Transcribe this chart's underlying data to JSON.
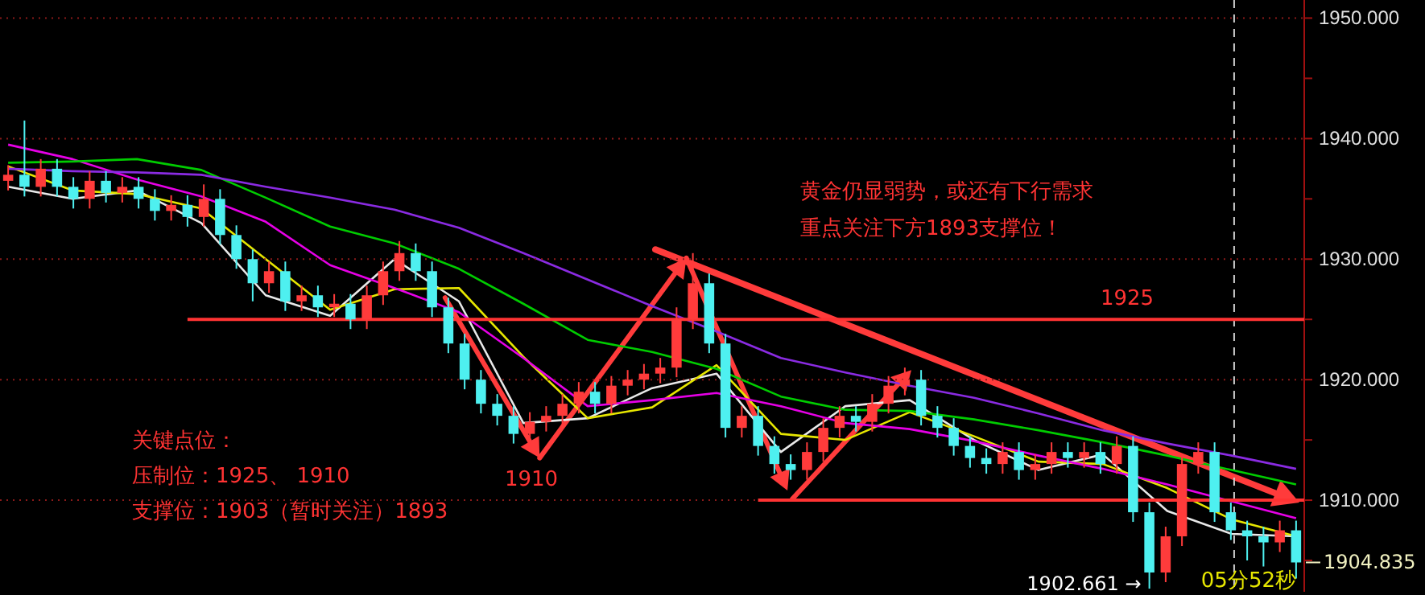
{
  "chart_data": [
    {
      "type": "candlestick",
      "categories": [
        null,
        null,
        null,
        null,
        null,
        null,
        null,
        null,
        null,
        null,
        null,
        null,
        null,
        null,
        null,
        null,
        null,
        null,
        null,
        null,
        null,
        null,
        null,
        null,
        null,
        null,
        null,
        null,
        null,
        null,
        null,
        null,
        null,
        null,
        null,
        null,
        null,
        null,
        null,
        null,
        null,
        null,
        null,
        null,
        null,
        null,
        null,
        null,
        null,
        null,
        null,
        null,
        null,
        null,
        null,
        null,
        null,
        null,
        null,
        null,
        null,
        null,
        null,
        null,
        null,
        null,
        null,
        null,
        null,
        null,
        null,
        null,
        null,
        null,
        null,
        null,
        null,
        null,
        null,
        null
      ],
      "ohlc": [
        [
          1936.5,
          1937.8,
          1935.7,
          1937
        ],
        [
          1937,
          1941.5,
          1935.2,
          1936
        ],
        [
          1936,
          1938.3,
          1935.2,
          1937.5
        ],
        [
          1937.5,
          1938.3,
          1935.2,
          1936
        ],
        [
          1936,
          1936.8,
          1934.2,
          1935
        ],
        [
          1935,
          1937.3,
          1934.2,
          1936.5
        ],
        [
          1936.5,
          1937.3,
          1934.7,
          1935.5
        ],
        [
          1935.5,
          1936.8,
          1934.7,
          1936
        ],
        [
          1936,
          1936.8,
          1934.2,
          1935
        ],
        [
          1935,
          1935.8,
          1933.2,
          1934
        ],
        [
          1934,
          1935.3,
          1933.2,
          1934.5
        ],
        [
          1934.5,
          1935.3,
          1932.7,
          1933.5
        ],
        [
          1933.5,
          1936.2,
          1932.7,
          1935
        ],
        [
          1935,
          1935.8,
          1931.2,
          1932
        ],
        [
          1932,
          1932.8,
          1929.2,
          1930
        ],
        [
          1930,
          1930.8,
          1926.5,
          1928
        ],
        [
          1928,
          1929.8,
          1927.2,
          1929
        ],
        [
          1929,
          1929.8,
          1925.7,
          1926.5
        ],
        [
          1926.5,
          1927.8,
          1925.7,
          1927
        ],
        [
          1927,
          1927.8,
          1925.2,
          1926
        ],
        [
          1926,
          1927.1,
          1925.2,
          1926.3
        ],
        [
          1926.3,
          1927.1,
          1924.2,
          1925
        ],
        [
          1925,
          1927.8,
          1924.2,
          1927
        ],
        [
          1927,
          1929.8,
          1926.2,
          1929
        ],
        [
          1929,
          1931.5,
          1928.2,
          1930.5
        ],
        [
          1930.5,
          1931.3,
          1928.2,
          1929
        ],
        [
          1929,
          1929.8,
          1925.2,
          1926
        ],
        [
          1926,
          1926.8,
          1922.2,
          1923
        ],
        [
          1923,
          1923.8,
          1919.2,
          1920
        ],
        [
          1920,
          1920.8,
          1917.2,
          1918
        ],
        [
          1918,
          1918.8,
          1916.2,
          1917
        ],
        [
          1917,
          1917.8,
          1914.7,
          1915.5
        ],
        [
          1915.5,
          1917.3,
          1914.7,
          1916.5
        ],
        [
          1916.5,
          1917.8,
          1915.7,
          1917
        ],
        [
          1917,
          1918.8,
          1916.2,
          1918
        ],
        [
          1918,
          1919.8,
          1917.2,
          1919
        ],
        [
          1919,
          1919.8,
          1917.2,
          1918
        ],
        [
          1918,
          1920.3,
          1917.2,
          1919.5
        ],
        [
          1919.5,
          1920.8,
          1918.7,
          1920
        ],
        [
          1920,
          1921.3,
          1919.2,
          1920.5
        ],
        [
          1920.5,
          1921.8,
          1919.7,
          1921
        ],
        [
          1921,
          1926,
          1920.2,
          1925
        ],
        [
          1925,
          1930.5,
          1924.2,
          1928
        ],
        [
          1928,
          1928.8,
          1922.2,
          1923
        ],
        [
          1923,
          1923.8,
          1915.2,
          1916
        ],
        [
          1916,
          1917.8,
          1915.2,
          1917
        ],
        [
          1917,
          1917.8,
          1913.7,
          1914.5
        ],
        [
          1914.5,
          1915.3,
          1912.2,
          1913
        ],
        [
          1913,
          1913.8,
          1911.7,
          1912.5
        ],
        [
          1912.5,
          1914.8,
          1911.7,
          1914
        ],
        [
          1914,
          1916.8,
          1913.2,
          1916
        ],
        [
          1916,
          1917.8,
          1915.2,
          1917
        ],
        [
          1917,
          1917.8,
          1915.7,
          1916.5
        ],
        [
          1916.5,
          1918.8,
          1915.7,
          1918
        ],
        [
          1918,
          1920.3,
          1917.2,
          1919.5
        ],
        [
          1919.5,
          1921,
          1918.7,
          1920
        ],
        [
          1920,
          1920.8,
          1916.2,
          1917
        ],
        [
          1917,
          1917.8,
          1915.2,
          1916
        ],
        [
          1916,
          1916.8,
          1913.7,
          1914.5
        ],
        [
          1914.5,
          1915.3,
          1912.7,
          1913.5
        ],
        [
          1913.5,
          1914.3,
          1912.2,
          1913
        ],
        [
          1913,
          1914.8,
          1912.2,
          1914
        ],
        [
          1914,
          1914.8,
          1911.7,
          1912.5
        ],
        [
          1912.5,
          1913.8,
          1911.7,
          1913
        ],
        [
          1913,
          1914.8,
          1912.2,
          1914
        ],
        [
          1914,
          1914.8,
          1912.7,
          1913.5
        ],
        [
          1913.5,
          1914.8,
          1912.7,
          1914
        ],
        [
          1914,
          1914.8,
          1912.2,
          1913
        ],
        [
          1913,
          1915.3,
          1912.2,
          1914.5
        ],
        [
          1914.5,
          1915.3,
          1908.2,
          1909
        ],
        [
          1909,
          1909.8,
          1902.661,
          1904
        ],
        [
          1904,
          1907.8,
          1903.2,
          1907
        ],
        [
          1907,
          1913.8,
          1906.2,
          1913
        ],
        [
          1913,
          1914.8,
          1912.2,
          1914
        ],
        [
          1914,
          1914.8,
          1908.2,
          1909
        ],
        [
          1909,
          1909.8,
          1906.7,
          1907.5
        ],
        [
          1907.5,
          1908.3,
          1905,
          1907
        ],
        [
          1907,
          1907.8,
          1904.5,
          1906.5
        ],
        [
          1906.5,
          1908.3,
          1905.7,
          1907.5
        ],
        [
          1907.5,
          1908.3,
          1903.5,
          1904.835
        ]
      ],
      "colors": [
        "#ff3b3b",
        "#4ef0f0",
        "#ff3b3b",
        "#4ef0f0",
        "#4ef0f0",
        "#ff3b3b",
        "#4ef0f0",
        "#ff3b3b",
        "#4ef0f0",
        "#4ef0f0",
        "#ff3b3b",
        "#4ef0f0",
        "#ff3b3b",
        "#4ef0f0",
        "#4ef0f0",
        "#4ef0f0",
        "#ff3b3b",
        "#4ef0f0",
        "#ff3b3b",
        "#4ef0f0",
        "#ff3b3b",
        "#4ef0f0",
        "#ff3b3b",
        "#ff3b3b",
        "#ff3b3b",
        "#4ef0f0",
        "#4ef0f0",
        "#4ef0f0",
        "#4ef0f0",
        "#4ef0f0",
        "#4ef0f0",
        "#4ef0f0",
        "#ff3b3b",
        "#ff3b3b",
        "#ff3b3b",
        "#ff3b3b",
        "#4ef0f0",
        "#ff3b3b",
        "#ff3b3b",
        "#ff3b3b",
        "#ff3b3b",
        "#ff3b3b",
        "#ff3b3b",
        "#4ef0f0",
        "#4ef0f0",
        "#ff3b3b",
        "#4ef0f0",
        "#4ef0f0",
        "#4ef0f0",
        "#ff3b3b",
        "#ff3b3b",
        "#ff3b3b",
        "#4ef0f0",
        "#ff3b3b",
        "#ff3b3b",
        "#ff3b3b",
        "#4ef0f0",
        "#4ef0f0",
        "#4ef0f0",
        "#4ef0f0",
        "#4ef0f0",
        "#ff3b3b",
        "#4ef0f0",
        "#ff3b3b",
        "#ff3b3b",
        "#4ef0f0",
        "#ff3b3b",
        "#4ef0f0",
        "#ff3b3b",
        "#4ef0f0",
        "#4ef0f0",
        "#ff3b3b",
        "#ff3b3b",
        "#ff3b3b",
        "#4ef0f0",
        "#4ef0f0",
        "#4ef0f0",
        "#4ef0f0",
        "#ff3b3b",
        "#4ef0f0"
      ],
      "ylim": [
        1902.4,
        1951.5
      ],
      "yticks": [
        {
          "value": 1905,
          "label": null
        },
        {
          "value": 1910,
          "label": "1910.000"
        },
        {
          "value": 1915,
          "label": null
        },
        {
          "value": 1920,
          "label": "1920.000"
        },
        {
          "value": 1925,
          "label": null
        },
        {
          "value": 1930,
          "label": "1930.000"
        },
        {
          "value": 1935,
          "label": null
        },
        {
          "value": 1940,
          "label": "1940.000"
        },
        {
          "value": 1945,
          "label": null
        },
        {
          "value": 1950,
          "label": "1950.000"
        }
      ],
      "tick_labels": "y",
      "grid": "y",
      "ref_lines": [
        {
          "axis": "y",
          "value": 1925,
          "label": "1925",
          "color": "#ff3333"
        },
        {
          "axis": "y",
          "value": 1910,
          "label": "1910",
          "color": "#ff3333"
        }
      ],
      "annotations": [
        "黄金仍显弱势，或还有下行需求",
        "重点关注下方1893支撑位！",
        "关键点位：",
        "压制位：1925、 1910",
        "支撑位：1903（暂时关注）1893",
        "1902.661 →",
        "1904.835",
        "05分52秒"
      ]
    },
    {
      "type": "line",
      "categories": [
        null,
        null,
        null,
        null,
        null,
        null,
        null,
        null,
        null,
        null,
        null,
        null,
        null,
        null,
        null,
        null,
        null,
        null,
        null,
        null,
        null
      ],
      "series": [
        {
          "color": "#e8e8e8",
          "values": [
            1936,
            1935,
            1935.7,
            1933,
            1927,
            1925.3,
            1930,
            1926.5,
            1916.4,
            1916.8,
            1919.3,
            1920.5,
            1914,
            1917.8,
            1918.3,
            1915,
            1912.5,
            1913.8,
            1909.1,
            1907.2,
            1907
          ]
        },
        {
          "color": "#e6e600",
          "values": [
            1937.7,
            1935.7,
            1935.4,
            1934.2,
            1930,
            1925.8,
            1927.5,
            1927.6,
            1921.9,
            1916.8,
            1917.7,
            1921.2,
            1915.5,
            1915,
            1917.3,
            1915.3,
            1913.2,
            1913,
            1911,
            1908.4,
            1907
          ]
        },
        {
          "color": "#e600e6",
          "values": [
            1939.5,
            1938.3,
            1936.6,
            1935.2,
            1933.1,
            1929.5,
            1927.6,
            1925.6,
            1921.8,
            1917.8,
            1918.3,
            1918.9,
            1917.8,
            1916.4,
            1915.9,
            1914.9,
            1913.7,
            1912.6,
            1911.3,
            1909.9,
            1908.5
          ]
        },
        {
          "color": "#00cc00",
          "values": [
            1938,
            1938.1,
            1938.3,
            1937.4,
            1935.1,
            1932.7,
            1931.3,
            1929.2,
            1926.3,
            1923.3,
            1922.3,
            1920.9,
            1918.6,
            1917.5,
            1917.4,
            1916.7,
            1915.8,
            1914.8,
            1913.7,
            1912.5,
            1911.3
          ]
        },
        {
          "color": "#8a2be2",
          "values": [
            1937.5,
            1937.3,
            1937.2,
            1937,
            1936,
            1935.1,
            1934.1,
            1932.6,
            1930.5,
            1928.3,
            1926.1,
            1924,
            1921.8,
            1920.6,
            1919.5,
            1918.5,
            1917.2,
            1915.8,
            1914.7,
            1913.7,
            1912.6
          ]
        }
      ],
      "ylim": [
        1902.4,
        1951.5
      ],
      "tick_labels": false,
      "marker": "none",
      "line_style": "solid"
    }
  ]
}
